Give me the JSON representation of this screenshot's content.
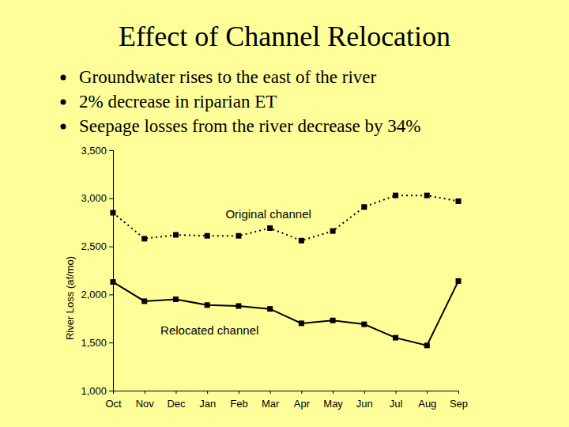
{
  "chart_data": {
    "type": "line",
    "title": "Effect of Channel Relocation",
    "annotations": [
      "Groundwater rises to the east of the river",
      "2% decrease in riparian ET",
      "Seepage losses from the river decrease by 34%"
    ],
    "y_label": "River Loss (af/mo)",
    "categories": [
      "Oct",
      "Nov",
      "Dec",
      "Jan",
      "Feb",
      "Mar",
      "Apr",
      "May",
      "Jun",
      "Jul",
      "Aug",
      "Sep"
    ],
    "series": [
      {
        "name": "Original channel",
        "color": "#000000",
        "marker": "square",
        "line_style": "dotted",
        "values": [
          2850,
          2580,
          2620,
          2610,
          2610,
          2690,
          2560,
          2660,
          2910,
          3030,
          3030,
          2970
        ]
      },
      {
        "name": "Relocated channel",
        "color": "#000000",
        "marker": "square",
        "line_style": "solid",
        "values": [
          2130,
          1930,
          1950,
          1890,
          1880,
          1850,
          1700,
          1730,
          1690,
          1550,
          1470,
          2140
        ]
      }
    ],
    "ylim": [
      1000,
      3500
    ],
    "yticks": [
      {
        "value": 1000,
        "label": "1,000"
      },
      {
        "value": 1500,
        "label": "1,500"
      },
      {
        "value": 2000,
        "label": "2,000"
      },
      {
        "value": 2500,
        "label": "2,500"
      },
      {
        "value": 3000,
        "label": "3,000"
      },
      {
        "value": 3500,
        "label": "3,500"
      }
    ],
    "grid": false
  }
}
